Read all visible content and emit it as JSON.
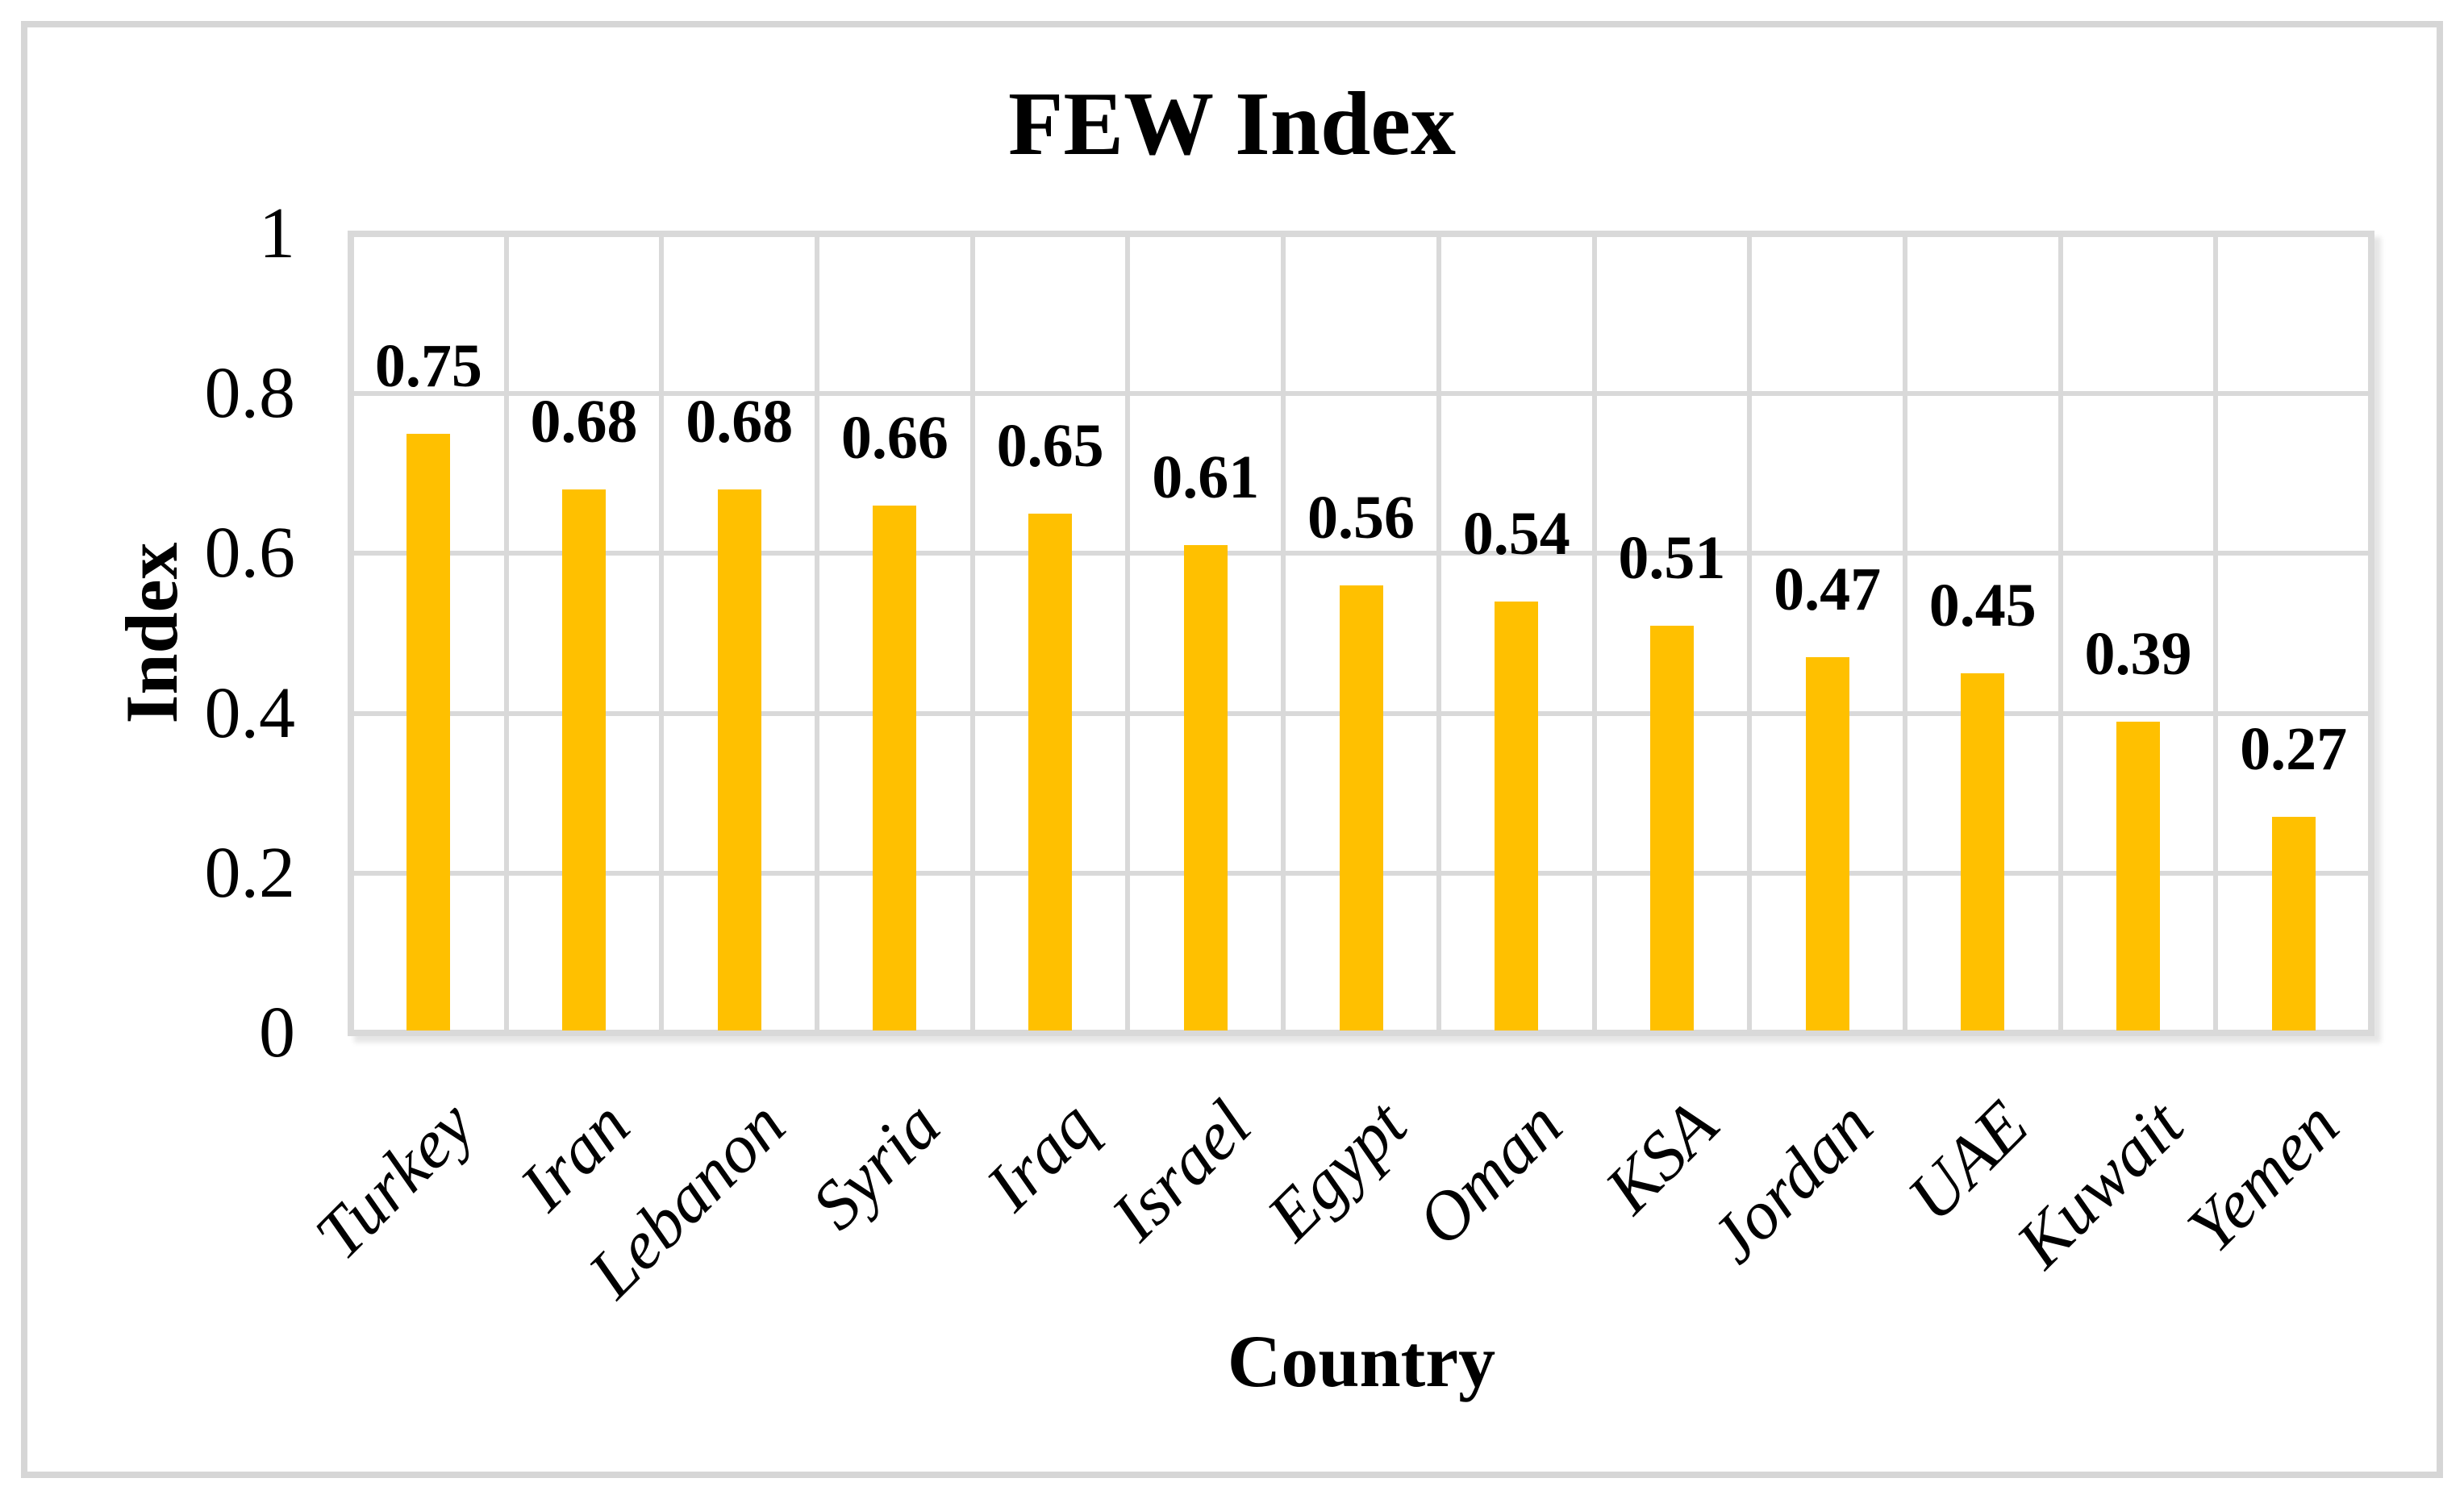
{
  "figure": {
    "background_color": "#FFFFFF",
    "frame_color": "#D6D6D6"
  },
  "chart_data": {
    "type": "bar",
    "title": "FEW Index",
    "xlabel": "Country",
    "ylabel": "Index",
    "categories": [
      "Turkey",
      "Iran",
      "Lebanon",
      "Syria",
      "Iraq",
      "Israel",
      "Egypt",
      "Oman",
      "KSA",
      "Jordan",
      "UAE",
      "Kuwait",
      "Yemen"
    ],
    "values": [
      0.75,
      0.68,
      0.68,
      0.66,
      0.65,
      0.61,
      0.56,
      0.54,
      0.51,
      0.47,
      0.45,
      0.39,
      0.27
    ],
    "data_labels": [
      "0.75",
      "0.68",
      "0.68",
      "0.66",
      "0.65",
      "0.61",
      "0.56",
      "0.54",
      "0.51",
      "0.47",
      "0.45",
      "0.39",
      "0.27"
    ],
    "y_tick_values": [
      0,
      0.2,
      0.4,
      0.6,
      0.8,
      1
    ],
    "y_tick_labels": [
      "0",
      "0.2",
      "0.4",
      "0.6",
      "0.8",
      "1"
    ],
    "ylim": [
      0,
      1
    ],
    "grid": {
      "horizontal": true,
      "vertical": true
    },
    "legend": "none",
    "bar_color": "#FFC000",
    "gridline_color": "#D9D9D9",
    "text_color": "#000000"
  }
}
